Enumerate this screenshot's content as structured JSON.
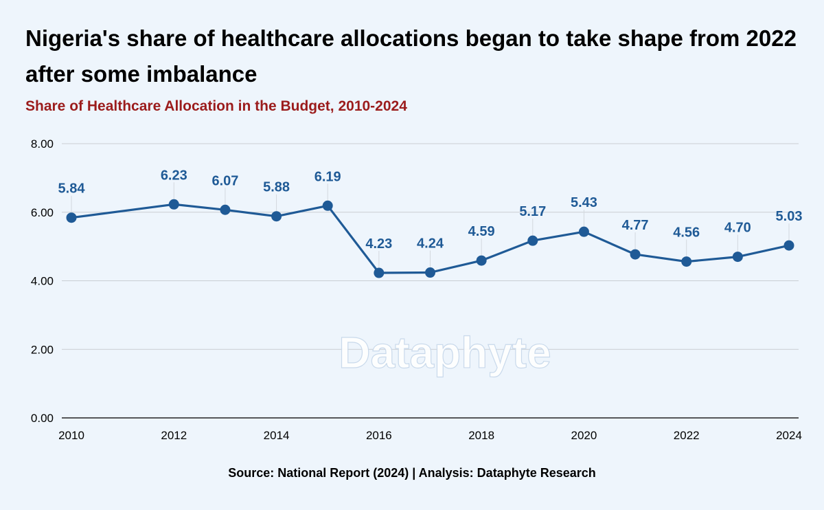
{
  "title": "Nigeria's share of healthcare allocations began to take shape from 2022 after some imbalance",
  "subtitle": "Share of Healthcare Allocation in the Budget, 2010-2024",
  "source": "Source: National Report (2024) | Analysis: Dataphyte Research",
  "watermark": "Dataphyte",
  "colors": {
    "line": "#1f5a96",
    "marker": "#1f5a96",
    "label": "#1f5a96",
    "subtitle": "#9b1c1c",
    "grid": "#c9cdd2",
    "background": "#eef5fc"
  },
  "chart_data": {
    "type": "line",
    "title": "Share of Healthcare Allocation in the Budget, 2010-2024",
    "xlabel": "",
    "ylabel": "",
    "x": [
      2010,
      2012,
      2013,
      2014,
      2015,
      2016,
      2017,
      2018,
      2019,
      2020,
      2021,
      2022,
      2023,
      2024
    ],
    "y": [
      5.84,
      6.23,
      6.07,
      5.88,
      6.19,
      4.23,
      4.24,
      4.59,
      5.17,
      5.43,
      4.77,
      4.56,
      4.7,
      5.03
    ],
    "data_labels": [
      "5.84",
      "6.23",
      "6.07",
      "5.88",
      "6.19",
      "4.23",
      "4.24",
      "4.59",
      "5.17",
      "5.43",
      "4.77",
      "4.56",
      "4.70",
      "5.03"
    ],
    "xlim": [
      2010,
      2024
    ],
    "ylim": [
      0,
      8
    ],
    "x_ticks": [
      "2010",
      "2012",
      "2014",
      "2016",
      "2018",
      "2020",
      "2022",
      "2024"
    ],
    "y_ticks": [
      "0.00",
      "2.00",
      "4.00",
      "6.00",
      "8.00"
    ],
    "grid": true,
    "legend": "none"
  }
}
